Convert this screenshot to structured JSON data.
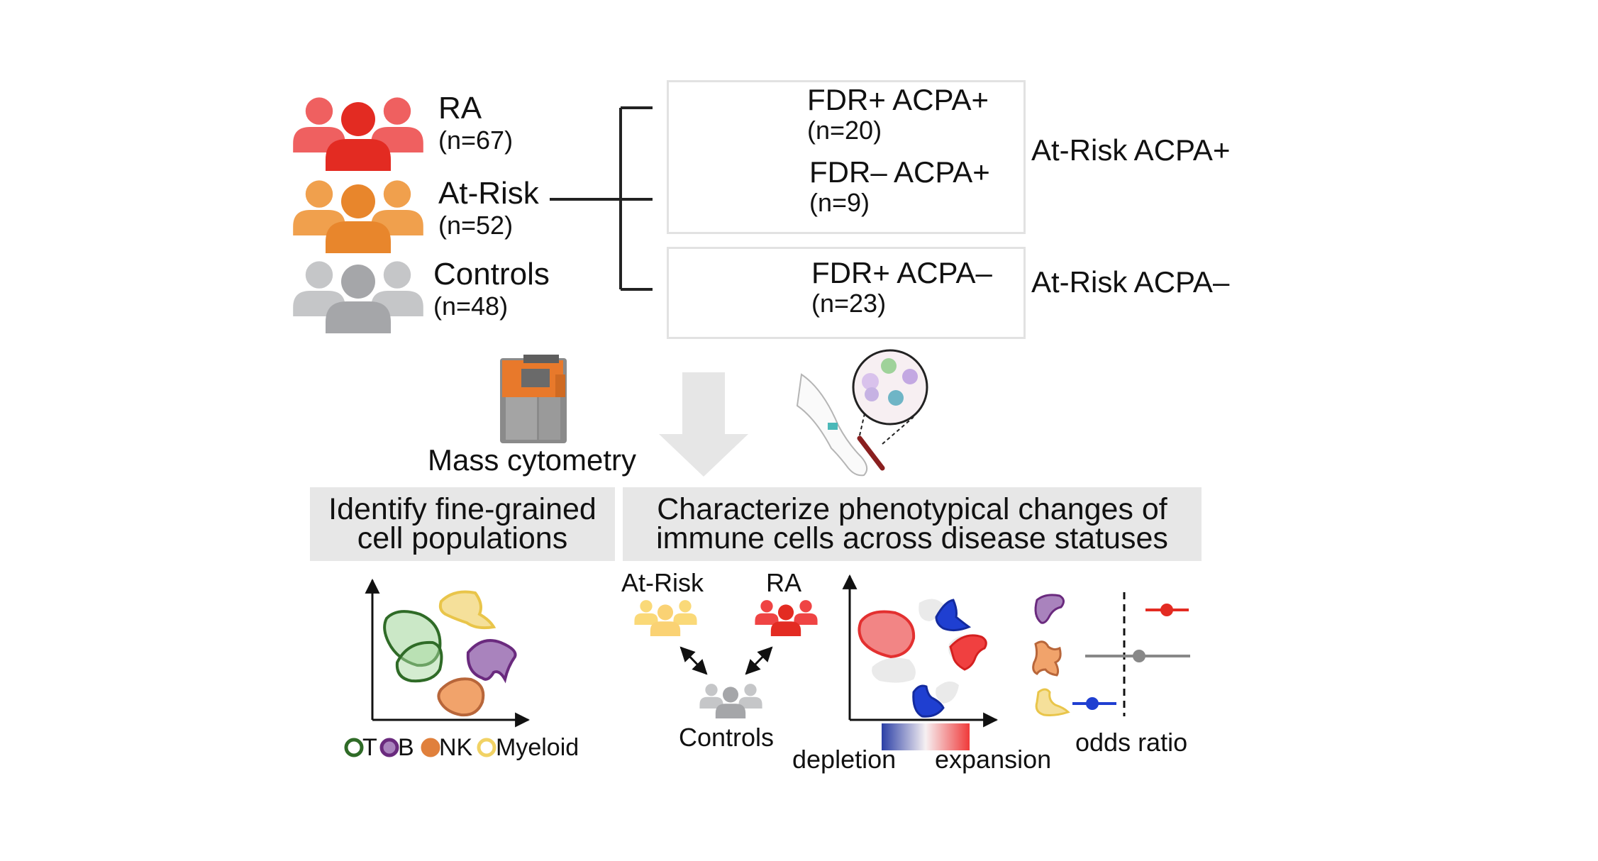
{
  "cohorts": [
    {
      "name": "RA",
      "count": "(n=67)",
      "color": "#e32b22"
    },
    {
      "name": "At-Risk",
      "count": "(n=52)",
      "color": "#e8862c"
    },
    {
      "name": "Controls",
      "count": "(n=48)",
      "color": "#a5a6a9"
    }
  ],
  "subgroups": [
    {
      "name": "FDR+ ACPA+",
      "count": "(n=20)",
      "color": "#fad274"
    },
    {
      "name": "FDR– ACPA+",
      "count": "(n=9)",
      "color": "#f9d77a"
    },
    {
      "name": "FDR+ ACPA–",
      "count": "(n=23)",
      "color": "#a58e7e"
    }
  ],
  "groups": {
    "acpa_pos": "At-Risk ACPA+",
    "acpa_neg": "At-Risk ACPA–"
  },
  "method": {
    "label": "Mass cytometry",
    "icons": [
      "mass-cytometer-icon",
      "blood-draw-icon",
      "down-arrow-icon"
    ]
  },
  "panels": {
    "left": {
      "title_line1": "Identify fine-grained",
      "title_line2": "cell populations",
      "legend": [
        {
          "label": "T",
          "color": "#2f6b27"
        },
        {
          "label": "B",
          "color": "#6a2a7e"
        },
        {
          "label": "NK",
          "color": "#e0803c"
        },
        {
          "label": "Myeloid",
          "color": "#f1d264"
        }
      ]
    },
    "right": {
      "title_line1": "Characterize phenotypical changes of",
      "title_line2": "immune cells across disease statuses",
      "atrisk_label": "At-Risk",
      "ra_label": "RA",
      "controls_label": "Controls",
      "depletion_label": "depletion",
      "expansion_label": "expansion",
      "odds_label": "odds ratio",
      "depletion_color": "#1f3fd1",
      "expansion_color": "#ee2626"
    }
  }
}
